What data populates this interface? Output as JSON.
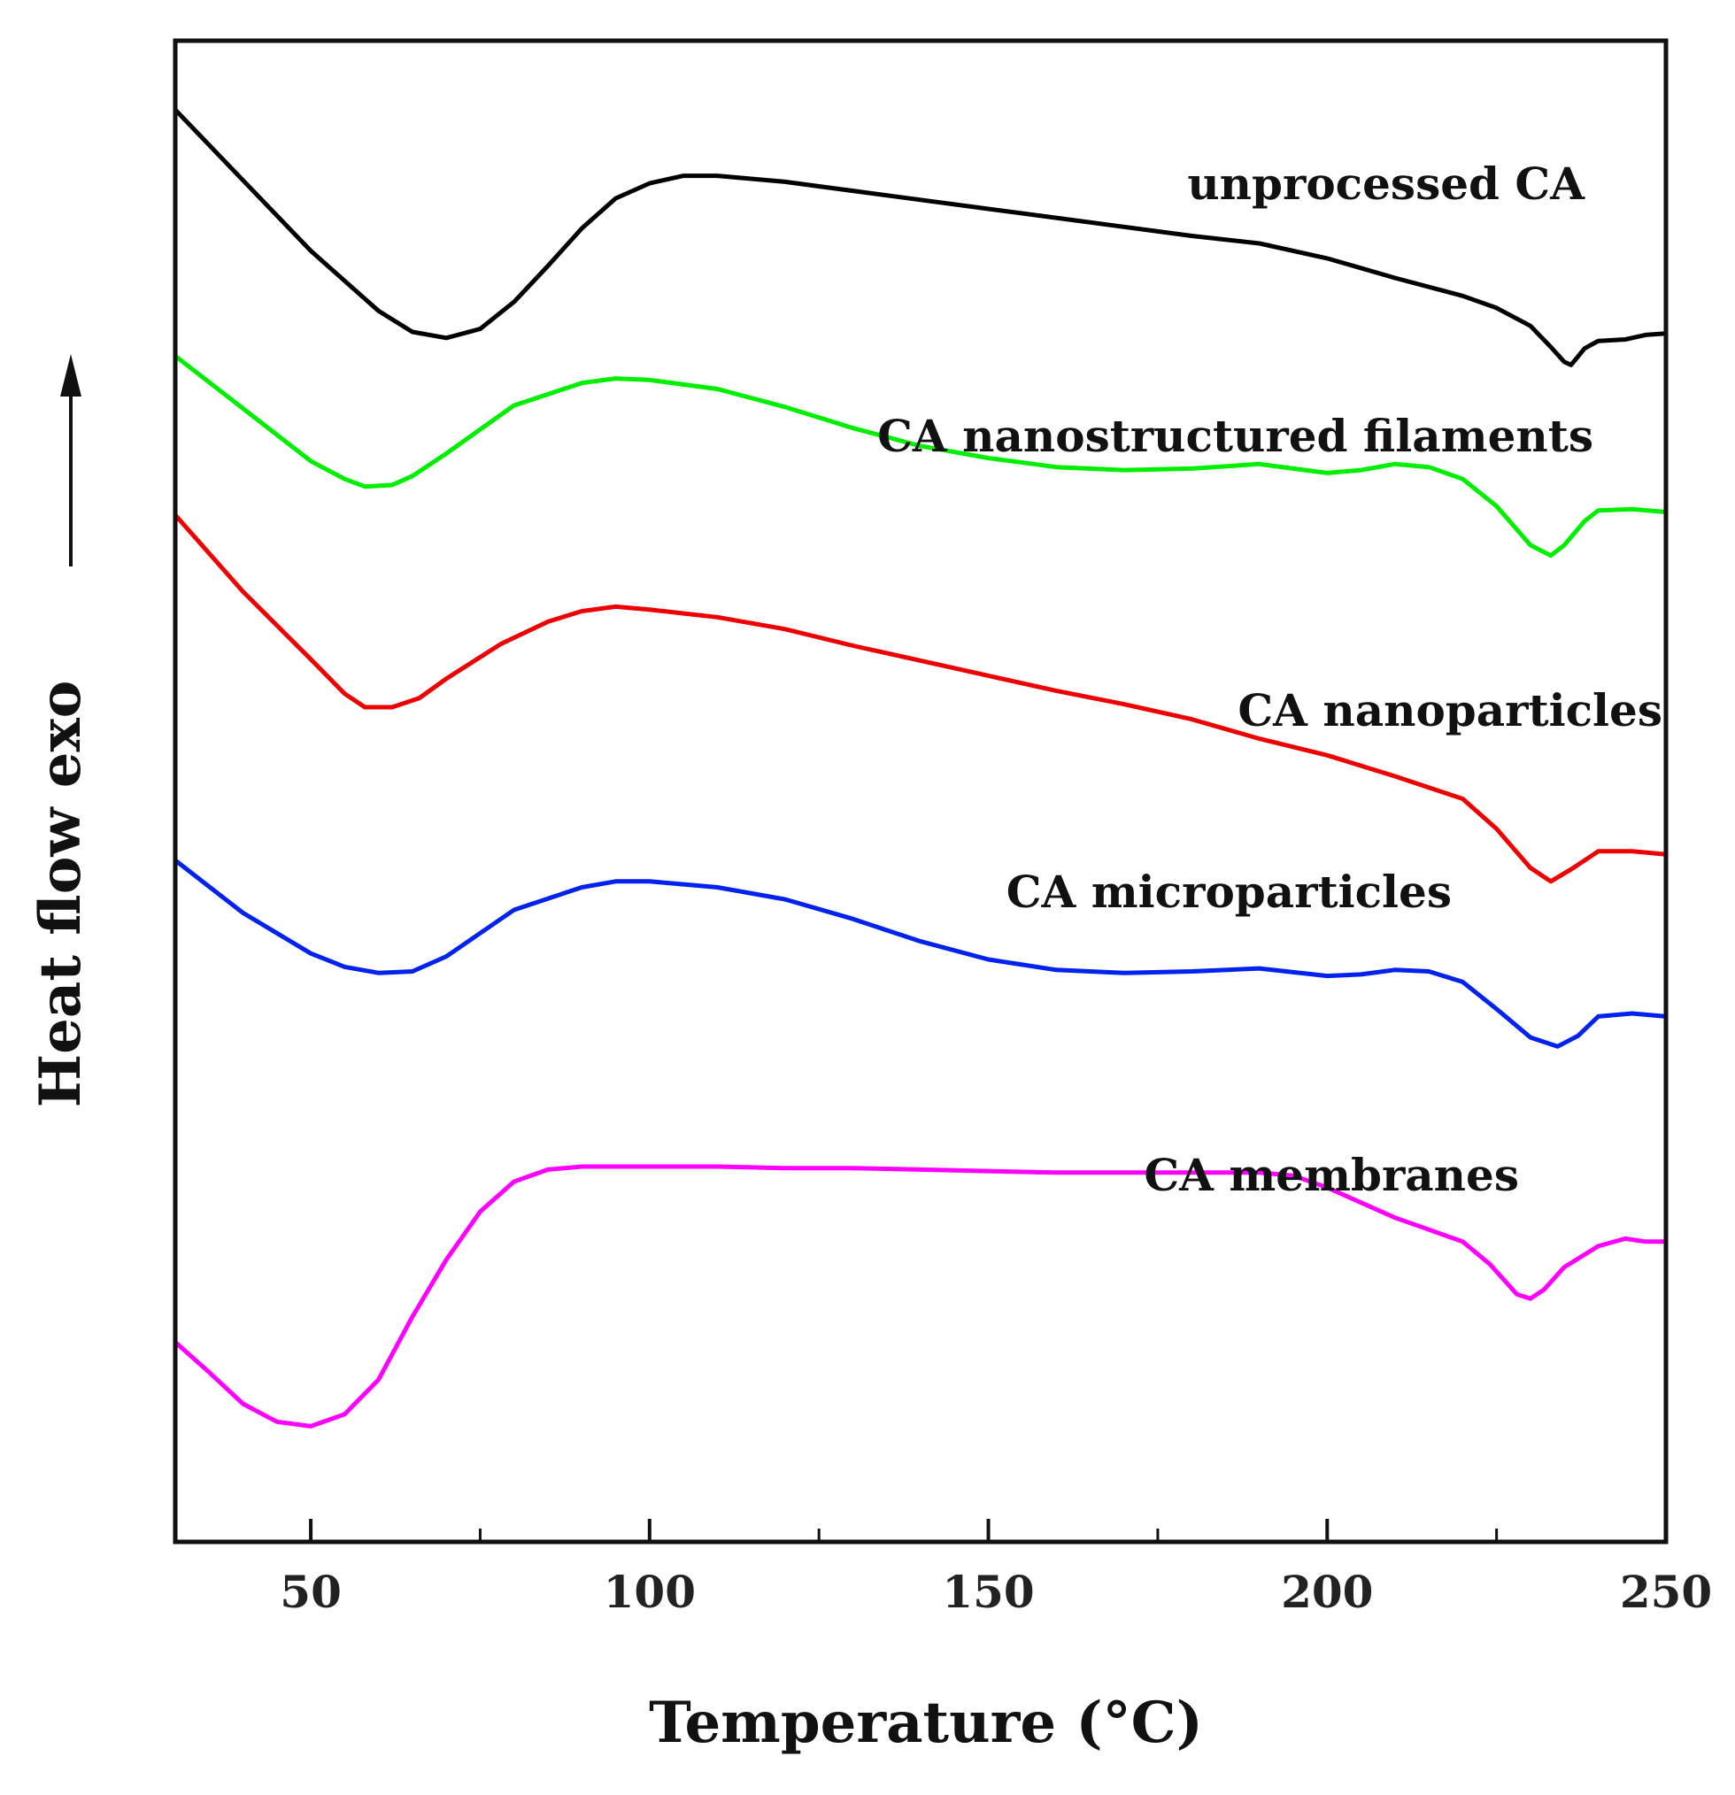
{
  "chart_data": {
    "type": "line",
    "xlabel": "Temperature (°C)",
    "ylabel": "Heat flow exo",
    "xlim": [
      30,
      250
    ],
    "ylim": [
      0,
      1
    ],
    "x_ticks": [
      50,
      100,
      150,
      200,
      250
    ],
    "x_tick_labels": [
      "50",
      "100",
      "150",
      "200",
      "250"
    ],
    "x_minor_ticks": [
      75,
      125,
      175,
      225
    ],
    "y_ticks_shown": false,
    "grid": false,
    "legend": "none (labels placed next to curves)",
    "series": [
      {
        "name": "unprocessed CA",
        "color": "#000000",
        "points": [
          [
            30,
            0.954
          ],
          [
            40,
            0.907
          ],
          [
            50,
            0.86
          ],
          [
            60,
            0.82
          ],
          [
            65,
            0.806
          ],
          [
            70,
            0.802
          ],
          [
            75,
            0.808
          ],
          [
            80,
            0.826
          ],
          [
            85,
            0.85
          ],
          [
            90,
            0.875
          ],
          [
            95,
            0.895
          ],
          [
            100,
            0.905
          ],
          [
            105,
            0.91
          ],
          [
            110,
            0.91
          ],
          [
            120,
            0.906
          ],
          [
            130,
            0.9
          ],
          [
            140,
            0.894
          ],
          [
            150,
            0.888
          ],
          [
            160,
            0.882
          ],
          [
            170,
            0.876
          ],
          [
            180,
            0.87
          ],
          [
            190,
            0.865
          ],
          [
            200,
            0.855
          ],
          [
            210,
            0.842
          ],
          [
            220,
            0.83
          ],
          [
            225,
            0.822
          ],
          [
            230,
            0.81
          ],
          [
            233,
            0.796
          ],
          [
            235,
            0.786
          ],
          [
            236,
            0.784
          ],
          [
            238,
            0.795
          ],
          [
            240,
            0.8
          ],
          [
            244,
            0.801
          ],
          [
            247,
            0.804
          ],
          [
            250,
            0.805
          ]
        ],
        "markers": []
      },
      {
        "name": "CA nanostructured filaments",
        "color": "#00ee00",
        "points": [
          [
            30,
            0.79
          ],
          [
            40,
            0.755
          ],
          [
            50,
            0.72
          ],
          [
            55,
            0.708
          ],
          [
            58,
            0.703
          ],
          [
            62,
            0.704
          ],
          [
            65,
            0.71
          ],
          [
            70,
            0.725
          ],
          [
            80,
            0.757
          ],
          [
            90,
            0.772
          ],
          [
            95,
            0.775
          ],
          [
            100,
            0.774
          ],
          [
            110,
            0.768
          ],
          [
            120,
            0.756
          ],
          [
            130,
            0.742
          ],
          [
            140,
            0.73
          ],
          [
            145,
            0.726
          ],
          [
            150,
            0.722
          ],
          [
            160,
            0.716
          ],
          [
            170,
            0.714
          ],
          [
            180,
            0.715
          ],
          [
            190,
            0.718
          ],
          [
            195,
            0.715
          ],
          [
            200,
            0.712
          ],
          [
            205,
            0.714
          ],
          [
            210,
            0.718
          ],
          [
            215,
            0.716
          ],
          [
            220,
            0.708
          ],
          [
            225,
            0.69
          ],
          [
            230,
            0.664
          ],
          [
            233,
            0.657
          ],
          [
            235,
            0.664
          ],
          [
            238,
            0.68
          ],
          [
            240,
            0.687
          ],
          [
            245,
            0.688
          ],
          [
            250,
            0.686
          ]
        ],
        "markers": []
      },
      {
        "name": "CA nanoparticles",
        "color": "#ee0000",
        "points": [
          [
            30,
            0.684
          ],
          [
            40,
            0.633
          ],
          [
            50,
            0.588
          ],
          [
            55,
            0.565
          ],
          [
            58,
            0.556
          ],
          [
            62,
            0.556
          ],
          [
            66,
            0.562
          ],
          [
            70,
            0.575
          ],
          [
            78,
            0.598
          ],
          [
            85,
            0.613
          ],
          [
            90,
            0.62
          ],
          [
            95,
            0.623
          ],
          [
            100,
            0.621
          ],
          [
            110,
            0.616
          ],
          [
            120,
            0.608
          ],
          [
            130,
            0.597
          ],
          [
            140,
            0.587
          ],
          [
            150,
            0.577
          ],
          [
            160,
            0.567
          ],
          [
            170,
            0.558
          ],
          [
            180,
            0.548
          ],
          [
            190,
            0.535
          ],
          [
            200,
            0.524
          ],
          [
            210,
            0.51
          ],
          [
            220,
            0.495
          ],
          [
            225,
            0.475
          ],
          [
            230,
            0.449
          ],
          [
            233,
            0.44
          ],
          [
            236,
            0.448
          ],
          [
            240,
            0.46
          ],
          [
            245,
            0.46
          ],
          [
            250,
            0.458
          ]
        ],
        "markers": []
      },
      {
        "name": "CA microparticles",
        "color": "#0022ee",
        "points": [
          [
            30,
            0.454
          ],
          [
            40,
            0.419
          ],
          [
            50,
            0.392
          ],
          [
            55,
            0.383
          ],
          [
            60,
            0.379
          ],
          [
            65,
            0.38
          ],
          [
            70,
            0.39
          ],
          [
            80,
            0.421
          ],
          [
            90,
            0.436
          ],
          [
            95,
            0.44
          ],
          [
            100,
            0.44
          ],
          [
            110,
            0.436
          ],
          [
            120,
            0.428
          ],
          [
            130,
            0.415
          ],
          [
            140,
            0.4
          ],
          [
            150,
            0.388
          ],
          [
            160,
            0.381
          ],
          [
            170,
            0.379
          ],
          [
            180,
            0.38
          ],
          [
            190,
            0.382
          ],
          [
            200,
            0.377
          ],
          [
            205,
            0.378
          ],
          [
            210,
            0.381
          ],
          [
            215,
            0.38
          ],
          [
            220,
            0.373
          ],
          [
            225,
            0.355
          ],
          [
            230,
            0.336
          ],
          [
            234,
            0.33
          ],
          [
            237,
            0.337
          ],
          [
            240,
            0.35
          ],
          [
            245,
            0.352
          ],
          [
            250,
            0.35
          ]
        ],
        "markers": []
      },
      {
        "name": "CA membranes",
        "color": "#ff00ff",
        "points": [
          [
            30,
            0.133
          ],
          [
            35,
            0.113
          ],
          [
            40,
            0.092
          ],
          [
            45,
            0.08
          ],
          [
            50,
            0.077
          ],
          [
            55,
            0.085
          ],
          [
            60,
            0.108
          ],
          [
            65,
            0.15
          ],
          [
            70,
            0.188
          ],
          [
            75,
            0.22
          ],
          [
            80,
            0.24
          ],
          [
            85,
            0.248
          ],
          [
            90,
            0.25
          ],
          [
            100,
            0.25
          ],
          [
            110,
            0.25
          ],
          [
            120,
            0.249
          ],
          [
            130,
            0.249
          ],
          [
            140,
            0.248
          ],
          [
            150,
            0.247
          ],
          [
            160,
            0.246
          ],
          [
            170,
            0.246
          ],
          [
            180,
            0.246
          ],
          [
            190,
            0.246
          ],
          [
            195,
            0.244
          ],
          [
            200,
            0.236
          ],
          [
            205,
            0.226
          ],
          [
            210,
            0.216
          ],
          [
            215,
            0.208
          ],
          [
            220,
            0.2
          ],
          [
            224,
            0.185
          ],
          [
            228,
            0.165
          ],
          [
            230,
            0.162
          ],
          [
            232,
            0.168
          ],
          [
            235,
            0.183
          ],
          [
            240,
            0.197
          ],
          [
            244,
            0.202
          ],
          [
            247,
            0.2
          ],
          [
            250,
            0.2
          ]
        ],
        "markers": []
      }
    ]
  }
}
